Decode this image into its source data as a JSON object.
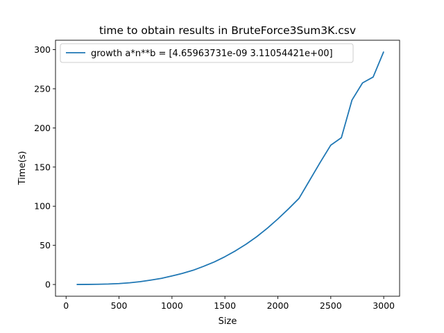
{
  "chart_data": {
    "type": "line",
    "title": "time to obtain results in BruteForce3Sum3K.csv",
    "xlabel": "Size",
    "ylabel": "Time(s)",
    "xlim": [
      -100,
      3150
    ],
    "ylim": [
      -15,
      312
    ],
    "xticks": [
      0,
      500,
      1000,
      1500,
      2000,
      2500,
      3000
    ],
    "yticks": [
      0,
      50,
      100,
      150,
      200,
      250,
      300
    ],
    "grid": false,
    "legend_position": "top-left",
    "series": [
      {
        "name": "growth a*n**b = [4.65963731e-09 3.11054421e+00]",
        "color": "#1f77b4",
        "x": [
          100,
          200,
          300,
          400,
          500,
          600,
          700,
          800,
          900,
          1000,
          1100,
          1200,
          1300,
          1400,
          1500,
          1600,
          1700,
          1800,
          1900,
          2000,
          2100,
          2200,
          2300,
          2400,
          2500,
          2600,
          2700,
          2800,
          2900,
          3000
        ],
        "y": [
          0.01,
          0.1,
          0.3,
          0.6,
          1.2,
          2.2,
          3.6,
          5.6,
          7.8,
          10.9,
          14.2,
          18.2,
          23.3,
          28.8,
          35.5,
          43.0,
          51.5,
          61.0,
          71.8,
          83.7,
          96.5,
          110.0,
          133.0,
          156.0,
          178.0,
          187.5,
          235.5,
          257.5,
          265.0,
          297.5
        ]
      }
    ]
  }
}
